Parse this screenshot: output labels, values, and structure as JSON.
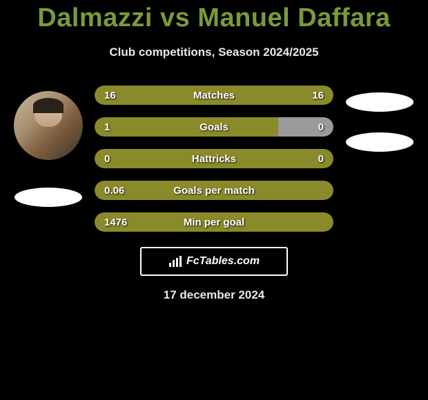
{
  "title": "Dalmazzi vs Manuel Daffara",
  "subtitle": "Club competitions, Season 2024/2025",
  "date": "17 december 2024",
  "brand": "FcTables.com",
  "colors": {
    "olive": "#8a8a2a",
    "gray": "#9a9a9a",
    "olive_dark": "#787820"
  },
  "stats": [
    {
      "label": "Matches",
      "left_val": "16",
      "right_val": "16",
      "left_pct": 50,
      "right_pct": 50,
      "left_color": "#8a8a2a",
      "right_color": "#8a8a2a"
    },
    {
      "label": "Goals",
      "left_val": "1",
      "right_val": "0",
      "left_pct": 77,
      "right_pct": 23,
      "left_color": "#8a8a2a",
      "right_color": "#9a9a9a"
    },
    {
      "label": "Hattricks",
      "left_val": "0",
      "right_val": "0",
      "left_pct": 100,
      "right_pct": 0,
      "left_color": "#8a8a2a",
      "right_color": "#8a8a2a"
    },
    {
      "label": "Goals per match",
      "left_val": "0.06",
      "right_val": "",
      "left_pct": 100,
      "right_pct": 0,
      "left_color": "#8a8a2a",
      "right_color": "#8a8a2a"
    },
    {
      "label": "Min per goal",
      "left_val": "1476",
      "right_val": "",
      "left_pct": 100,
      "right_pct": 0,
      "left_color": "#8a8a2a",
      "right_color": "#8a8a2a"
    }
  ]
}
